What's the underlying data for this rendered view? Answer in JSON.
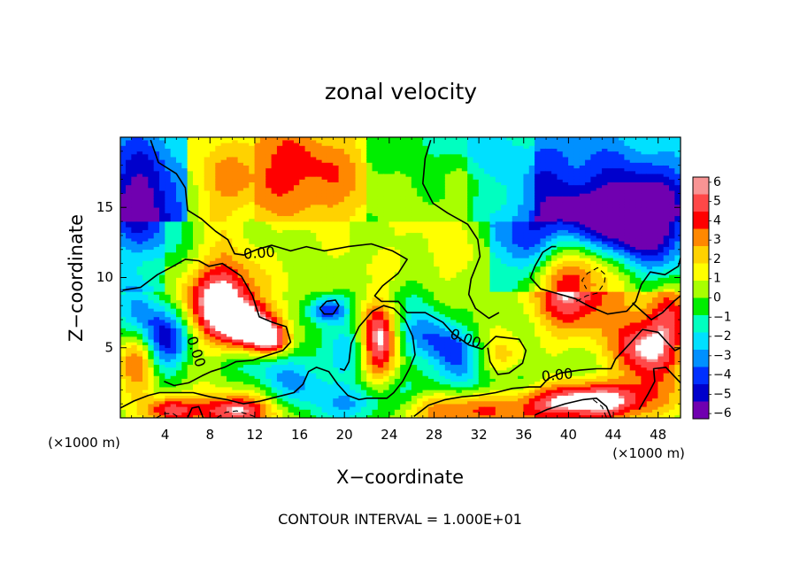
{
  "chart_data": {
    "type": "heatmap",
    "title": "zonal velocity",
    "xlabel": "X−coordinate",
    "ylabel": "Z−coordinate",
    "x_unit": "(×1000 m)",
    "y_unit": "(×1000 m)",
    "xlim": [
      0,
      50
    ],
    "ylim": [
      0,
      20
    ],
    "x_ticks": [
      4,
      8,
      12,
      16,
      20,
      24,
      28,
      32,
      36,
      40,
      44,
      48
    ],
    "y_ticks": [
      5,
      10,
      15
    ],
    "colorbar": {
      "ticks": [
        "6",
        "5",
        "4",
        "3",
        "2",
        "1",
        "0",
        "−1",
        "−2",
        "−3",
        "−4",
        "−5",
        "−6"
      ],
      "colors": [
        "#f89494",
        "#ff4848",
        "#ff0000",
        "#ff8800",
        "#ffd200",
        "#ffff00",
        "#a8ff00",
        "#00ee00",
        "#00ffc0",
        "#00e0ff",
        "#0090ff",
        "#0030ff",
        "#0000cc",
        "#7000b0"
      ]
    },
    "contour_labels": [
      {
        "text": "0.00",
        "x": 12.4,
        "y": 11.7,
        "rotate": -4
      },
      {
        "text": "0.00",
        "x": 30.8,
        "y": 5.6,
        "rotate": 20
      },
      {
        "text": "0.00",
        "x": 6.7,
        "y": 4.7,
        "rotate": 72
      },
      {
        "text": "0.00",
        "x": 39.0,
        "y": 3.0,
        "rotate": -6
      }
    ],
    "footer": "CONTOUR INTERVAL = 1.000E+01",
    "features": [
      {
        "x": 40.0,
        "y": 10.0,
        "sx": 3.5,
        "sy": 2.6,
        "v": 7.0
      },
      {
        "x": 41.0,
        "y": 13.5,
        "sx": 3.5,
        "sy": 1.8,
        "v": -5.2
      },
      {
        "x": 47.0,
        "y": 13.5,
        "sx": 2.5,
        "sy": 2.0,
        "v": -5.0
      },
      {
        "x": 36.0,
        "y": 11.5,
        "sx": 2.0,
        "sy": 3.0,
        "v": -3.5
      },
      {
        "x": 45.0,
        "y": 16.0,
        "sx": 5.0,
        "sy": 2.0,
        "v": -2.5
      },
      {
        "x": 9.0,
        "y": 8.5,
        "sx": 2.2,
        "sy": 2.0,
        "v": 7.0
      },
      {
        "x": 11.5,
        "y": 6.5,
        "sx": 2.0,
        "sy": 1.2,
        "v": 6.0
      },
      {
        "x": 13.5,
        "y": 5.5,
        "sx": 1.2,
        "sy": 0.8,
        "v": 5.0
      },
      {
        "x": 23.0,
        "y": 5.5,
        "sx": 1.2,
        "sy": 2.2,
        "v": 7.0
      },
      {
        "x": 47.0,
        "y": 5.0,
        "sx": 2.0,
        "sy": 1.8,
        "v": 6.0
      },
      {
        "x": 49.0,
        "y": 7.5,
        "sx": 1.2,
        "sy": 2.0,
        "v": 3.0
      },
      {
        "x": 42.0,
        "y": 1.3,
        "sx": 4.5,
        "sy": 1.0,
        "v": 7.0
      },
      {
        "x": 36.0,
        "y": 0.8,
        "sx": 4.0,
        "sy": 1.2,
        "v": 3.0
      },
      {
        "x": 29.0,
        "y": 0.7,
        "sx": 3.0,
        "sy": 0.9,
        "v": 4.0
      },
      {
        "x": 10.0,
        "y": 0.5,
        "sx": 2.5,
        "sy": 0.8,
        "v": 6.0
      },
      {
        "x": 4.5,
        "y": 0.6,
        "sx": 1.5,
        "sy": 0.7,
        "v": 5.0
      },
      {
        "x": 1.5,
        "y": 4.0,
        "sx": 1.2,
        "sy": 1.5,
        "v": 4.5
      },
      {
        "x": 4.0,
        "y": 5.5,
        "sx": 1.5,
        "sy": 1.5,
        "v": -6.0
      },
      {
        "x": 1.5,
        "y": 7.5,
        "sx": 1.5,
        "sy": 1.5,
        "v": -3.5
      },
      {
        "x": 2.0,
        "y": 14.0,
        "sx": 2.5,
        "sy": 2.0,
        "v": -3.5
      },
      {
        "x": 1.5,
        "y": 17.0,
        "sx": 2.0,
        "sy": 2.0,
        "v": -2.0
      },
      {
        "x": 18.6,
        "y": 7.7,
        "sx": 1.2,
        "sy": 0.7,
        "v": -5.5
      },
      {
        "x": 20.5,
        "y": 5.0,
        "sx": 2.0,
        "sy": 1.5,
        "v": -3.0
      },
      {
        "x": 27.5,
        "y": 6.0,
        "sx": 2.0,
        "sy": 1.5,
        "v": -4.0
      },
      {
        "x": 30.0,
        "y": 4.5,
        "sx": 1.5,
        "sy": 1.2,
        "v": -3.5
      },
      {
        "x": 34.0,
        "y": 4.0,
        "sx": 1.5,
        "sy": 1.2,
        "v": 2.0
      },
      {
        "x": 34.0,
        "y": 2.0,
        "sx": 6.0,
        "sy": 1.2,
        "v": -3.0
      },
      {
        "x": 21.0,
        "y": 1.0,
        "sx": 3.0,
        "sy": 1.0,
        "v": -3.5
      },
      {
        "x": 16.0,
        "y": 2.5,
        "sx": 2.0,
        "sy": 1.0,
        "v": -3.0
      },
      {
        "x": 13.0,
        "y": 4.0,
        "sx": 2.5,
        "sy": 1.0,
        "v": -2.5
      },
      {
        "x": 25.0,
        "y": 9.0,
        "sx": 2.0,
        "sy": 1.0,
        "v": -1.5
      },
      {
        "x": 14.0,
        "y": 18.0,
        "sx": 4.0,
        "sy": 2.0,
        "v": 2.3
      },
      {
        "x": 9.0,
        "y": 16.0,
        "sx": 2.0,
        "sy": 2.0,
        "v": 1.5
      },
      {
        "x": 18.0,
        "y": 16.5,
        "sx": 2.5,
        "sy": 2.0,
        "v": 1.2
      },
      {
        "x": 28.0,
        "y": 11.5,
        "sx": 3.0,
        "sy": 3.0,
        "v": 0.7
      },
      {
        "x": 29.0,
        "y": 19.5,
        "sx": 4.0,
        "sy": 1.2,
        "v": -1.3
      },
      {
        "x": 37.0,
        "y": 18.5,
        "sx": 4.0,
        "sy": 1.5,
        "v": -1.5
      }
    ],
    "contours": [
      {
        "style": "solid",
        "points": [
          [
            2.7,
            19.8
          ],
          [
            3.4,
            18.2
          ],
          [
            5.0,
            17.4
          ],
          [
            5.8,
            16.4
          ],
          [
            6.0,
            14.8
          ],
          [
            7.2,
            14.2
          ],
          [
            8.5,
            13.3
          ],
          [
            9.6,
            12.7
          ],
          [
            10.2,
            11.7
          ],
          [
            11.0,
            11.6
          ],
          [
            12.2,
            12.0
          ],
          [
            13.5,
            12.3
          ],
          [
            15.2,
            11.9
          ],
          [
            16.6,
            12.2
          ],
          [
            18.2,
            11.9
          ],
          [
            20.3,
            12.2
          ],
          [
            22.4,
            12.4
          ],
          [
            24.3,
            11.9
          ],
          [
            25.6,
            11.3
          ],
          [
            24.8,
            10.3
          ],
          [
            23.4,
            9.4
          ],
          [
            22.7,
            8.7
          ],
          [
            23.3,
            8.3
          ],
          [
            24.8,
            8.3
          ],
          [
            25.6,
            7.5
          ],
          [
            27.2,
            7.5
          ],
          [
            28.8,
            6.8
          ],
          [
            29.7,
            6.0
          ],
          [
            31.1,
            5.2
          ],
          [
            32.3,
            4.9
          ],
          [
            33.5,
            5.8
          ],
          [
            35.6,
            5.6
          ],
          [
            36.2,
            4.8
          ],
          [
            35.9,
            3.9
          ],
          [
            34.7,
            3.2
          ],
          [
            33.7,
            3.1
          ],
          [
            33.0,
            4.0
          ],
          [
            32.8,
            5.0
          ]
        ]
      },
      {
        "style": "solid",
        "points": [
          [
            27.7,
            19.8
          ],
          [
            27.2,
            18.5
          ],
          [
            27.0,
            16.7
          ],
          [
            27.9,
            15.3
          ],
          [
            29.2,
            14.6
          ],
          [
            31.0,
            13.8
          ],
          [
            31.9,
            12.7
          ],
          [
            32.1,
            11.5
          ],
          [
            31.3,
            9.9
          ],
          [
            31.1,
            8.8
          ],
          [
            31.7,
            7.8
          ],
          [
            32.9,
            7.1
          ],
          [
            33.8,
            7.5
          ]
        ]
      },
      {
        "style": "solid",
        "points": [
          [
            0.2,
            9.1
          ],
          [
            1.8,
            9.3
          ],
          [
            3.3,
            10.2
          ],
          [
            4.7,
            10.8
          ],
          [
            5.8,
            11.3
          ],
          [
            7.0,
            11.2
          ],
          [
            7.9,
            10.8
          ],
          [
            9.1,
            11.0
          ],
          [
            10.8,
            10.1
          ],
          [
            11.8,
            8.7
          ],
          [
            12.4,
            7.2
          ],
          [
            13.6,
            6.8
          ],
          [
            14.8,
            6.5
          ],
          [
            15.2,
            5.4
          ],
          [
            14.5,
            4.8
          ],
          [
            12.9,
            4.4
          ],
          [
            11.8,
            4.1
          ],
          [
            10.3,
            4.0
          ],
          [
            9.3,
            3.6
          ],
          [
            8.1,
            3.3
          ],
          [
            7.3,
            3.0
          ],
          [
            6.1,
            2.5
          ],
          [
            4.8,
            2.3
          ],
          [
            3.9,
            2.6
          ]
        ]
      },
      {
        "style": "solid",
        "points": [
          [
            0.0,
            0.7
          ],
          [
            1.2,
            1.2
          ],
          [
            2.5,
            1.6
          ],
          [
            3.5,
            1.8
          ],
          [
            5.0,
            1.8
          ],
          [
            6.5,
            1.8
          ],
          [
            8.0,
            1.5
          ],
          [
            9.5,
            1.3
          ],
          [
            11.0,
            1.0
          ],
          [
            12.5,
            1.2
          ],
          [
            14.0,
            1.5
          ],
          [
            15.5,
            1.8
          ],
          [
            16.3,
            2.4
          ],
          [
            16.8,
            3.3
          ],
          [
            17.5,
            3.6
          ],
          [
            18.6,
            3.3
          ],
          [
            19.4,
            2.4
          ],
          [
            20.3,
            1.6
          ],
          [
            21.3,
            1.3
          ],
          [
            22.0,
            1.4
          ],
          [
            23.0,
            1.4
          ],
          [
            23.8,
            1.4
          ],
          [
            24.4,
            1.8
          ],
          [
            25.2,
            2.6
          ],
          [
            25.8,
            3.5
          ],
          [
            26.3,
            4.5
          ],
          [
            26.1,
            5.8
          ],
          [
            25.4,
            7.0
          ],
          [
            24.4,
            7.8
          ],
          [
            23.5,
            8.0
          ],
          [
            22.5,
            7.6
          ],
          [
            21.3,
            6.5
          ],
          [
            20.6,
            5.3
          ],
          [
            20.4,
            4.0
          ],
          [
            20.0,
            3.4
          ],
          [
            19.6,
            3.5
          ]
        ]
      },
      {
        "style": "solid",
        "points": [
          [
            26.2,
            0.1
          ],
          [
            27.5,
            0.9
          ],
          [
            29.0,
            1.3
          ],
          [
            30.5,
            1.5
          ],
          [
            32.0,
            1.6
          ],
          [
            33.5,
            1.8
          ],
          [
            35.0,
            2.1
          ],
          [
            36.5,
            2.2
          ],
          [
            37.5,
            2.2
          ],
          [
            38.2,
            2.8
          ],
          [
            39.3,
            3.2
          ],
          [
            41.0,
            3.4
          ],
          [
            42.5,
            3.5
          ],
          [
            43.8,
            3.5
          ],
          [
            44.2,
            4.2
          ],
          [
            45.6,
            5.4
          ],
          [
            46.6,
            6.3
          ],
          [
            48.0,
            6.1
          ],
          [
            48.9,
            5.3
          ],
          [
            49.5,
            4.8
          ],
          [
            50.0,
            5.0
          ]
        ]
      },
      {
        "style": "solid",
        "points": [
          [
            46.3,
            0.6
          ],
          [
            47.1,
            1.7
          ],
          [
            47.7,
            2.6
          ],
          [
            47.6,
            3.5
          ],
          [
            48.7,
            3.6
          ],
          [
            49.4,
            3.0
          ],
          [
            50.0,
            2.5
          ]
        ]
      },
      {
        "style": "solid",
        "points": [
          [
            38.9,
            12.2
          ],
          [
            38.5,
            12.2
          ],
          [
            37.7,
            11.8
          ],
          [
            37.0,
            10.8
          ],
          [
            36.6,
            10.0
          ],
          [
            37.5,
            9.2
          ],
          [
            38.8,
            8.9
          ],
          [
            40.6,
            8.5
          ],
          [
            42.0,
            7.9
          ],
          [
            43.5,
            7.4
          ],
          [
            45.2,
            7.6
          ],
          [
            46.0,
            8.3
          ],
          [
            46.5,
            9.5
          ],
          [
            47.3,
            10.4
          ],
          [
            48.6,
            10.2
          ],
          [
            49.8,
            10.8
          ],
          [
            50.0,
            11.4
          ]
        ]
      },
      {
        "style": "solid",
        "points": [
          [
            45.7,
            8.2
          ],
          [
            47.4,
            7.0
          ],
          [
            48.4,
            7.5
          ],
          [
            49.4,
            8.3
          ],
          [
            50.0,
            8.7
          ]
        ]
      },
      {
        "style": "solid",
        "points": [
          [
            37.0,
            0.2
          ],
          [
            38.1,
            0.6
          ],
          [
            39.7,
            1.0
          ],
          [
            41.3,
            1.3
          ],
          [
            42.5,
            1.4
          ],
          [
            43.4,
            0.8
          ],
          [
            43.8,
            0.0
          ]
        ]
      },
      {
        "style": "solid",
        "points": [
          [
            17.8,
            7.8
          ],
          [
            18.4,
            8.3
          ],
          [
            19.2,
            8.4
          ],
          [
            19.5,
            8.0
          ],
          [
            19.0,
            7.4
          ],
          [
            18.2,
            7.4
          ],
          [
            17.8,
            7.8
          ]
        ]
      },
      {
        "style": "solid",
        "points": [
          [
            6.0,
            0.0
          ],
          [
            6.4,
            0.7
          ],
          [
            7.0,
            0.8
          ],
          [
            7.4,
            0.0
          ]
        ]
      },
      {
        "style": "dashed",
        "points": [
          [
            40.7,
            8.3
          ],
          [
            41.6,
            8.7
          ],
          [
            42.6,
            8.9
          ],
          [
            43.2,
            9.6
          ],
          [
            43.3,
            10.2
          ],
          [
            42.6,
            10.7
          ],
          [
            41.7,
            10.3
          ],
          [
            41.2,
            9.8
          ],
          [
            41.6,
            9.2
          ]
        ]
      },
      {
        "style": "dashed",
        "points": [
          [
            8.6,
            0.0
          ],
          [
            9.4,
            0.4
          ],
          [
            10.4,
            0.5
          ],
          [
            11.6,
            0.2
          ],
          [
            12.3,
            0.0
          ]
        ]
      },
      {
        "style": "dashed",
        "points": [
          [
            42.2,
            1.3
          ],
          [
            43.0,
            0.8
          ],
          [
            43.4,
            0.0
          ]
        ]
      },
      {
        "style": "dashed",
        "points": [
          [
            3.2,
            0.0
          ],
          [
            3.9,
            0.3
          ],
          [
            4.7,
            0.3
          ],
          [
            5.3,
            0.0
          ]
        ]
      }
    ]
  }
}
